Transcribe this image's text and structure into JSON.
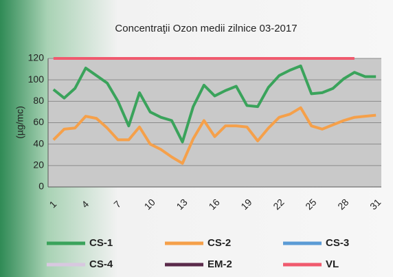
{
  "chart_data": {
    "type": "line",
    "title": "Concentraţii Ozon medii zilnice  03-2017",
    "y_label": "(µg/mc)",
    "categories": [
      "1",
      null,
      null,
      "4",
      null,
      null,
      "7",
      null,
      null,
      "10",
      null,
      null,
      "13",
      null,
      null,
      "16",
      null,
      null,
      "19",
      null,
      null,
      "22",
      null,
      null,
      "25",
      null,
      null,
      "28",
      null,
      null,
      "31"
    ],
    "ylim": [
      0,
      120
    ],
    "yticks": [
      0,
      20,
      40,
      60,
      80,
      100,
      120
    ],
    "grid": true,
    "legend": "bottom",
    "series": [
      {
        "name": "CS-1",
        "color": "#3aa35b",
        "values": [
          91,
          83,
          92,
          111,
          104,
          97,
          80,
          57,
          88,
          70,
          65,
          62,
          42,
          75,
          95,
          85,
          90,
          94,
          76,
          75,
          93,
          104,
          109,
          113,
          87,
          88,
          92,
          101,
          107,
          103,
          103
        ]
      },
      {
        "name": "CS-2",
        "color": "#f5a04a",
        "values": [
          44,
          54,
          55,
          66,
          64,
          55,
          44,
          44,
          56,
          40,
          35,
          28,
          22,
          45,
          62,
          47,
          57,
          57,
          56,
          43,
          55,
          65,
          68,
          74,
          57,
          54,
          58,
          62,
          65,
          66,
          67
        ]
      },
      {
        "name": "CS-3",
        "color": "#5b9bd5",
        "values": [
          null,
          null,
          null,
          null,
          null,
          null,
          null,
          null,
          null,
          null,
          null,
          null,
          null,
          null,
          null,
          null,
          null,
          null,
          null,
          null,
          null,
          null,
          null,
          null,
          null,
          null,
          null,
          null,
          null,
          null,
          null
        ]
      },
      {
        "name": "CS-4",
        "color": "#d8c8e0",
        "values": [
          null,
          null,
          null,
          null,
          null,
          null,
          null,
          null,
          null,
          null,
          null,
          null,
          null,
          null,
          null,
          null,
          null,
          null,
          null,
          null,
          null,
          null,
          null,
          null,
          null,
          null,
          null,
          null,
          null,
          null,
          null
        ]
      },
      {
        "name": "EM-2",
        "color": "#5a2a4a",
        "values": [
          null,
          null,
          null,
          null,
          null,
          null,
          null,
          null,
          null,
          null,
          null,
          null,
          null,
          null,
          null,
          null,
          null,
          null,
          null,
          null,
          null,
          null,
          null,
          null,
          null,
          null,
          null,
          null,
          null,
          null,
          null
        ]
      },
      {
        "name": "VL",
        "color": "#f05a6e",
        "values": [
          120,
          120,
          120,
          120,
          120,
          120,
          120,
          120,
          120,
          120,
          120,
          120,
          120,
          120,
          120,
          120,
          120,
          120,
          120,
          120,
          120,
          120,
          120,
          120,
          120,
          120,
          120,
          120,
          120,
          null,
          null
        ]
      }
    ]
  }
}
